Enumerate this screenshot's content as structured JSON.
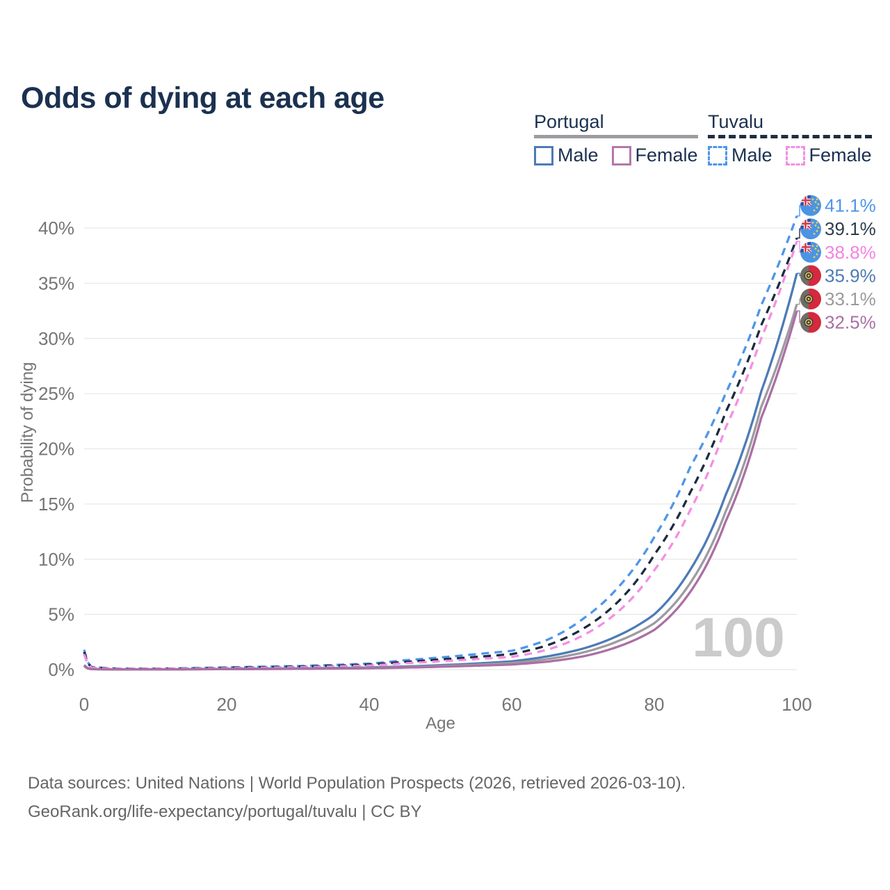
{
  "title": "Odds of dying at each age",
  "legend": {
    "groups": [
      {
        "title": "Portugal",
        "underline_color": "#9c9ca0",
        "underline_dashed": false,
        "items": [
          {
            "label": "Male",
            "color": "#4d7bb5",
            "dashed": false
          },
          {
            "label": "Female",
            "color": "#b277ad",
            "dashed": false
          }
        ]
      },
      {
        "title": "Tuvalu",
        "underline_color": "#1f2d40",
        "underline_dashed": true,
        "items": [
          {
            "label": "Male",
            "color": "#4e95ea",
            "dashed": true
          },
          {
            "label": "Female",
            "color": "#f58ee3",
            "dashed": true
          }
        ]
      }
    ]
  },
  "chart_data": {
    "type": "line",
    "title": "Odds of dying at each age",
    "xlabel": "Age",
    "ylabel": "Probability of dying",
    "xlim": [
      0,
      100
    ],
    "ylim": [
      0,
      43
    ],
    "x_ticks": [
      0,
      20,
      40,
      60,
      80,
      100
    ],
    "y_ticks": [
      0,
      5,
      10,
      15,
      20,
      25,
      30,
      35,
      40
    ],
    "y_tick_suffix": "%",
    "grid": true,
    "legend_position": "top-right",
    "watermark": "100",
    "ages": [
      0,
      1,
      5,
      10,
      15,
      20,
      25,
      30,
      35,
      40,
      45,
      50,
      55,
      60,
      65,
      70,
      75,
      80,
      85,
      90,
      95,
      100
    ],
    "series": [
      {
        "name": "Tuvalu Male",
        "country": "Tuvalu",
        "sex": "Male",
        "color": "#4e95ea",
        "label_color": "#4e95ea",
        "dashed": true,
        "flag": "tuvalu",
        "end_label": "41.1%",
        "values": [
          1.8,
          0.25,
          0.08,
          0.08,
          0.13,
          0.2,
          0.26,
          0.32,
          0.42,
          0.55,
          0.85,
          1.1,
          1.4,
          1.7,
          2.7,
          4.6,
          7.5,
          12.0,
          18.3,
          25.0,
          33.0,
          41.1
        ]
      },
      {
        "name": "Tuvalu Both sexes",
        "country": "Tuvalu",
        "sex": "Both",
        "color": "#1c2b40",
        "label_color": "#2e3c4e",
        "dashed": true,
        "flag": "tuvalu",
        "end_label": "39.1%",
        "values": [
          1.6,
          0.22,
          0.07,
          0.07,
          0.11,
          0.17,
          0.22,
          0.27,
          0.35,
          0.46,
          0.7,
          0.92,
          1.15,
          1.4,
          2.2,
          3.7,
          6.2,
          10.4,
          16.0,
          23.3,
          31.2,
          39.1
        ]
      },
      {
        "name": "Tuvalu Female",
        "country": "Tuvalu",
        "sex": "Female",
        "color": "#f58ee3",
        "label_color": "#f582e0",
        "dashed": true,
        "flag": "tuvalu",
        "end_label": "38.8%",
        "values": [
          1.4,
          0.18,
          0.06,
          0.06,
          0.09,
          0.13,
          0.17,
          0.22,
          0.28,
          0.37,
          0.58,
          0.76,
          0.95,
          1.15,
          1.8,
          3.1,
          5.3,
          9.0,
          14.4,
          21.9,
          30.0,
          38.8
        ]
      },
      {
        "name": "Portugal Male",
        "country": "Portugal",
        "sex": "Male",
        "color": "#4d7bb5",
        "label_color": "#4d7bb5",
        "dashed": false,
        "flag": "portugal",
        "end_label": "35.9%",
        "values": [
          0.4,
          0.05,
          0.02,
          0.02,
          0.04,
          0.07,
          0.09,
          0.11,
          0.14,
          0.19,
          0.28,
          0.4,
          0.55,
          0.75,
          1.2,
          1.9,
          3.1,
          5.0,
          9.0,
          15.8,
          25.2,
          35.9
        ]
      },
      {
        "name": "Portugal Both sexes",
        "country": "Portugal",
        "sex": "Both",
        "color": "#9c9ca0",
        "label_color": "#9a9a9a",
        "dashed": false,
        "flag": "portugal",
        "end_label": "33.1%",
        "values": [
          0.35,
          0.04,
          0.015,
          0.015,
          0.03,
          0.05,
          0.07,
          0.09,
          0.11,
          0.15,
          0.22,
          0.32,
          0.44,
          0.6,
          0.95,
          1.55,
          2.6,
          4.2,
          7.8,
          14.3,
          23.8,
          33.1
        ]
      },
      {
        "name": "Portugal Female",
        "country": "Portugal",
        "sex": "Female",
        "color": "#ab6fa5",
        "label_color": "#ab6fa5",
        "dashed": false,
        "flag": "portugal",
        "end_label": "32.5%",
        "values": [
          0.3,
          0.035,
          0.012,
          0.012,
          0.025,
          0.04,
          0.05,
          0.07,
          0.09,
          0.12,
          0.18,
          0.26,
          0.35,
          0.46,
          0.72,
          1.2,
          2.1,
          3.6,
          7.0,
          13.4,
          22.8,
          32.5
        ]
      }
    ]
  },
  "footer": {
    "line1": "Data sources: United Nations | World Population Prospects (2026, retrieved 2026-03-10).",
    "line2": "GeoRank.org/life-expectancy/portugal/tuvalu | CC BY"
  }
}
